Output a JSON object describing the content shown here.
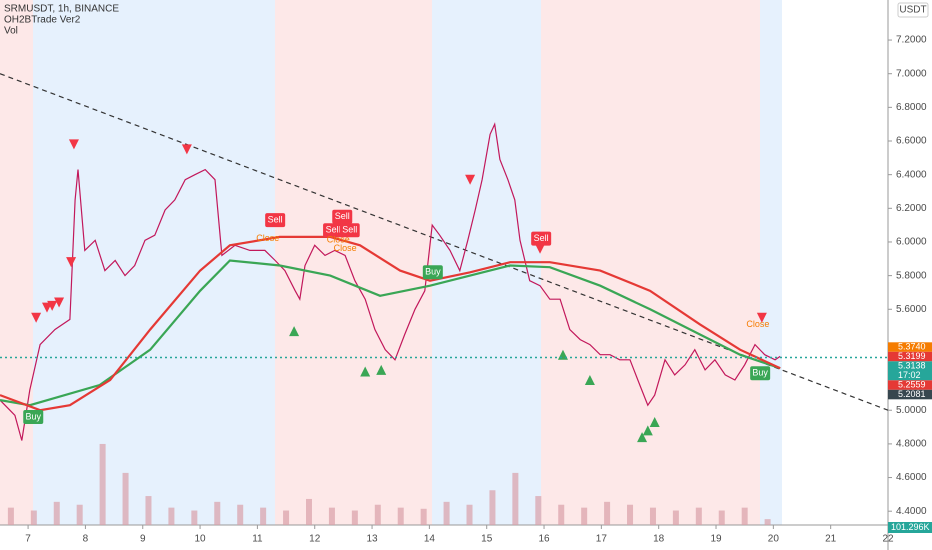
{
  "chart_data": {
    "type": "line",
    "title": "SRMUSDT, 1h, BINANCE",
    "indicators": [
      "OH2BTrade Ver2",
      "Vol"
    ],
    "currency": "USDT",
    "xlim": [
      6.51,
      22.0
    ],
    "ylim": [
      4.318,
      7.438
    ],
    "xticks": [
      7,
      8,
      9,
      10,
      11,
      12,
      13,
      14,
      15,
      16,
      17,
      18,
      19,
      20,
      21,
      22
    ],
    "yticks": [
      {
        "value": 7.2,
        "label": "7.2000"
      },
      {
        "value": 7.0,
        "label": "7.0000"
      },
      {
        "value": 6.8,
        "label": "6.8000"
      },
      {
        "value": 6.6,
        "label": "6.6000"
      },
      {
        "value": 6.4,
        "label": "6.4000"
      },
      {
        "value": 6.2,
        "label": "6.2000"
      },
      {
        "value": 6.0,
        "label": "6.0000"
      },
      {
        "value": 5.8,
        "label": "5.8000"
      },
      {
        "value": 5.6,
        "label": "5.6000"
      },
      {
        "value": 5.0,
        "label": "5.0000"
      },
      {
        "value": 4.8,
        "label": "4.8000"
      },
      {
        "value": 4.6,
        "label": "4.6000"
      },
      {
        "value": 4.4,
        "label": "4.4000"
      }
    ],
    "series": [
      {
        "color": "#c2185b",
        "x": [
          6.51,
          6.77,
          6.89,
          7.03,
          7.21,
          7.47,
          7.73,
          7.82,
          7.87,
          7.99,
          8.17,
          8.34,
          8.52,
          8.69,
          8.86,
          9.04,
          9.21,
          9.39,
          9.56,
          9.74,
          9.91,
          10.09,
          10.26,
          10.38,
          10.61,
          10.87,
          11.13,
          11.31,
          11.48,
          11.66,
          11.74,
          11.83,
          12.0,
          12.18,
          12.35,
          12.53,
          12.7,
          12.88,
          13.05,
          13.23,
          13.4,
          13.57,
          13.75,
          13.92,
          14.05,
          14.18,
          14.36,
          14.53,
          14.67,
          14.8,
          14.92,
          15.06,
          15.14,
          15.23,
          15.37,
          15.49,
          15.58,
          15.75,
          15.93,
          16.1,
          16.28,
          16.45,
          16.63,
          16.8,
          16.98,
          17.15,
          17.32,
          17.5,
          17.67,
          17.81,
          17.93,
          18.11,
          18.28,
          18.46,
          18.63,
          18.81,
          18.98,
          19.16,
          19.33,
          19.5,
          19.68,
          19.85,
          20.03,
          20.12
        ],
        "values": [
          5.06,
          4.97,
          4.82,
          5.12,
          5.39,
          5.48,
          5.54,
          6.25,
          6.43,
          5.95,
          6.01,
          5.83,
          5.89,
          5.8,
          5.86,
          6.01,
          6.04,
          6.19,
          6.25,
          6.37,
          6.4,
          6.43,
          6.37,
          5.92,
          5.98,
          5.95,
          5.95,
          5.89,
          5.83,
          5.71,
          5.66,
          5.86,
          5.98,
          5.92,
          5.95,
          5.92,
          5.77,
          5.66,
          5.48,
          5.36,
          5.3,
          5.45,
          5.6,
          5.71,
          6.1,
          6.04,
          5.95,
          5.83,
          6.01,
          6.19,
          6.37,
          6.64,
          6.7,
          6.49,
          6.37,
          6.25,
          6.01,
          5.77,
          5.74,
          5.66,
          5.66,
          5.48,
          5.42,
          5.39,
          5.33,
          5.33,
          5.3,
          5.3,
          5.15,
          5.03,
          5.09,
          5.3,
          5.21,
          5.27,
          5.36,
          5.24,
          5.3,
          5.21,
          5.18,
          5.27,
          5.39,
          5.33,
          5.3,
          5.32
        ]
      },
      {
        "color": "#3aa655",
        "x": [
          6.51,
          7.03,
          8.25,
          9.13,
          10.0,
          10.52,
          11.39,
          12.27,
          13.14,
          14.01,
          14.71,
          15.41,
          16.1,
          16.98,
          17.85,
          18.72,
          19.42,
          20.12
        ],
        "values": [
          5.06,
          5.03,
          5.15,
          5.36,
          5.71,
          5.89,
          5.86,
          5.8,
          5.68,
          5.74,
          5.8,
          5.86,
          5.85,
          5.74,
          5.6,
          5.45,
          5.33,
          5.25
        ]
      },
      {
        "color": "#e53935",
        "x": [
          6.51,
          7.21,
          7.73,
          8.43,
          9.13,
          10.0,
          10.52,
          11.39,
          12.27,
          12.79,
          13.49,
          14.01,
          14.71,
          15.41,
          16.1,
          16.98,
          17.85,
          18.72,
          19.42,
          20.12
        ],
        "values": [
          5.09,
          5.0,
          5.03,
          5.18,
          5.48,
          5.83,
          5.98,
          6.03,
          6.03,
          5.98,
          5.83,
          5.77,
          5.82,
          5.88,
          5.88,
          5.83,
          5.71,
          5.51,
          5.36,
          5.25
        ]
      }
    ],
    "trendline": {
      "color": "#333333",
      "x": [
        6.51,
        22.0
      ],
      "values": [
        7.0,
        5.0
      ]
    },
    "triangles_down": {
      "color": "#f23645",
      "x": [
        7.14,
        7.33,
        7.42,
        7.54,
        7.8,
        7.75,
        9.77,
        14.71,
        15.93,
        19.8
      ],
      "values": [
        5.55,
        5.61,
        5.62,
        5.64,
        6.58,
        5.88,
        6.55,
        6.37,
        5.96,
        5.55
      ]
    },
    "triangles_up": {
      "color": "#3aa655",
      "x": [
        11.64,
        12.88,
        13.16,
        16.33,
        16.8,
        17.71,
        17.81,
        17.93
      ],
      "values": [
        5.47,
        5.23,
        5.24,
        5.33,
        5.18,
        4.84,
        4.88,
        4.93
      ]
    },
    "annotations": [
      {
        "text": "Sell",
        "x": 11.31,
        "y": 6.13,
        "color": "#f23645"
      },
      {
        "text": "Sell",
        "x": 12.32,
        "y": 6.07,
        "color": "#f23645"
      },
      {
        "text": "Sell",
        "x": 12.48,
        "y": 6.15,
        "color": "#f23645"
      },
      {
        "text": "Sell",
        "x": 12.61,
        "y": 6.07,
        "color": "#f23645"
      },
      {
        "text": "Sell",
        "x": 15.95,
        "y": 6.02,
        "color": "#f23645"
      },
      {
        "text": "Buy",
        "x": 14.06,
        "y": 5.82,
        "color": "#3aa655"
      },
      {
        "text": "Buy",
        "x": 7.09,
        "y": 4.96,
        "color": "#3aa655"
      },
      {
        "text": "Buy",
        "x": 19.77,
        "y": 5.22,
        "color": "#3aa655"
      },
      {
        "text": "Close",
        "x": 11.18,
        "y": 6.02,
        "color": "#f57c00"
      },
      {
        "text": "Close",
        "x": 12.41,
        "y": 6.01,
        "color": "#f57c00"
      },
      {
        "text": "Close",
        "x": 12.53,
        "y": 5.96,
        "color": "#f57c00"
      },
      {
        "text": "Close",
        "x": 19.73,
        "y": 5.51,
        "color": "#f57c00"
      }
    ],
    "price_labels": [
      {
        "value": 5.374,
        "label": "5.3740",
        "color": "#f57c00"
      },
      {
        "value": 5.3199,
        "label": "5.3199",
        "color": "#e53935"
      },
      {
        "value": 5.3138,
        "label": "5.3138",
        "color": "#26a69a",
        "countdown": "17:02"
      },
      {
        "value": 5.2559,
        "label": "5.2559",
        "color": "#e53935"
      },
      {
        "value": 5.2081,
        "label": "5.2081",
        "color": "#37474f"
      }
    ],
    "volume": {
      "color": "#d8a0a8",
      "vlim": [
        0,
        1900
      ],
      "x": [
        6.7,
        7.1,
        7.5,
        7.9,
        8.3,
        8.7,
        9.1,
        9.5,
        9.9,
        10.3,
        10.7,
        11.1,
        11.5,
        11.9,
        12.3,
        12.7,
        13.1,
        13.5,
        13.9,
        14.3,
        14.7,
        15.1,
        15.5,
        15.9,
        16.3,
        16.7,
        17.1,
        17.5,
        17.9,
        18.3,
        18.7,
        19.1,
        19.5,
        19.9
      ],
      "values": [
        300,
        250,
        400,
        350,
        1400,
        900,
        500,
        300,
        250,
        400,
        350,
        300,
        250,
        450,
        300,
        250,
        350,
        300,
        280,
        400,
        350,
        600,
        900,
        500,
        350,
        300,
        400,
        350,
        300,
        250,
        300,
        250,
        300,
        101.296
      ],
      "last_label": "101.296K",
      "label_color": "#26a69a"
    }
  }
}
